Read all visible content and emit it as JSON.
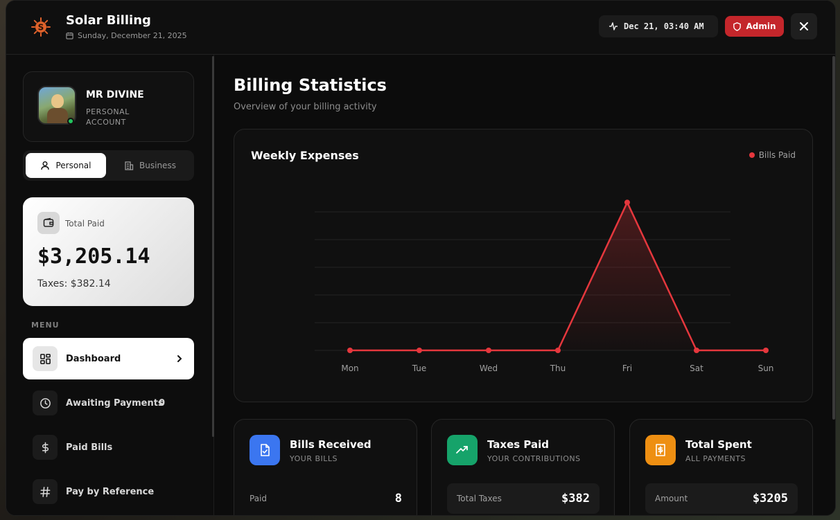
{
  "header": {
    "app_title": "Solar Billing",
    "date": "Sunday, December 21, 2025",
    "clock": "Dec 21, 03:40 AM",
    "admin_label": "Admin"
  },
  "profile": {
    "name": "MR DIVINE",
    "account_type": "PERSONAL ACCOUNT"
  },
  "account_toggle": {
    "personal": "Personal",
    "business": "Business",
    "selected": "Personal"
  },
  "total_card": {
    "label": "Total Paid",
    "value": "$3,205.14",
    "taxes": "Taxes: $382.14"
  },
  "menu": {
    "label": "MENU",
    "items": [
      {
        "label": "Dashboard",
        "icon": "dashboard-icon",
        "active": true
      },
      {
        "label": "Awaiting Payments",
        "icon": "clock-icon",
        "badge": "0"
      },
      {
        "label": "Paid Bills",
        "icon": "dollar-icon"
      },
      {
        "label": "Pay by Reference",
        "icon": "hash-icon"
      }
    ]
  },
  "main": {
    "title": "Billing Statistics",
    "subtitle": "Overview of your billing activity"
  },
  "chart": {
    "title": "Weekly Expenses",
    "legend": "Bills Paid"
  },
  "chart_data": {
    "type": "line",
    "title": "Weekly Expenses",
    "categories": [
      "Mon",
      "Tue",
      "Wed",
      "Thu",
      "Fri",
      "Sat",
      "Sun"
    ],
    "series": [
      {
        "name": "Bills Paid",
        "values": [
          0,
          0,
          0,
          0,
          3205,
          0,
          0
        ],
        "color": "#e5373d"
      }
    ],
    "ylim": [
      0,
      3600
    ],
    "grid": true,
    "legend_position": "top-right"
  },
  "stats": [
    {
      "title": "Bills Received",
      "subtitle": "YOUR BILLS",
      "row_label": "Paid",
      "row_value": "8",
      "color": "#3b76f0",
      "icon": "file-check-icon"
    },
    {
      "title": "Taxes Paid",
      "subtitle": "YOUR CONTRIBUTIONS",
      "row_label": "Total Taxes",
      "row_value": "$382",
      "color": "#16a36a",
      "icon": "trending-up-icon"
    },
    {
      "title": "Total Spent",
      "subtitle": "ALL PAYMENTS",
      "row_label": "Amount",
      "row_value": "$3205",
      "color": "#ee8f12",
      "icon": "receipt-dollar-icon"
    }
  ],
  "colors": {
    "accent_red": "#c4262b",
    "background": "#0e0e0e"
  }
}
